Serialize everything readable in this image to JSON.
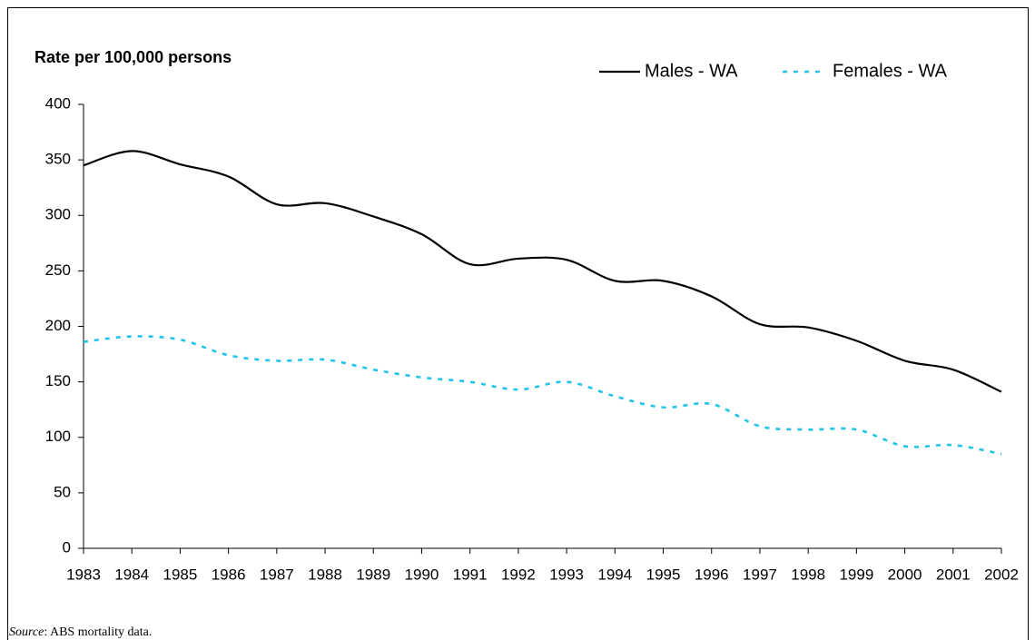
{
  "chart_data": {
    "type": "line",
    "y_label": "Rate per 100,000 persons",
    "categories": [
      "1983",
      "1984",
      "1985",
      "1986",
      "1987",
      "1988",
      "1989",
      "1990",
      "1991",
      "1992",
      "1993",
      "1994",
      "1995",
      "1996",
      "1997",
      "1998",
      "1999",
      "2000",
      "2001",
      "2002"
    ],
    "series": [
      {
        "name": "Males - WA",
        "color": "#000000",
        "dash": false,
        "values": [
          345,
          358,
          346,
          335,
          310,
          311,
          299,
          283,
          256,
          261,
          260,
          241,
          241,
          227,
          202,
          199,
          187,
          169,
          161,
          141
        ]
      },
      {
        "name": "Females - WA",
        "color": "#1fc4e8",
        "dash": true,
        "values": [
          186,
          191,
          188,
          174,
          169,
          170,
          161,
          154,
          150,
          143,
          150,
          137,
          127,
          130,
          110,
          107,
          107,
          92,
          93,
          85
        ]
      }
    ],
    "ylim": [
      0,
      400
    ],
    "yticks": [
      0,
      50,
      100,
      150,
      200,
      250,
      300,
      350,
      400
    ],
    "legend": "top-right",
    "grid": false,
    "source": {
      "label": "Source",
      "text": ":  ABS mortality data."
    }
  }
}
